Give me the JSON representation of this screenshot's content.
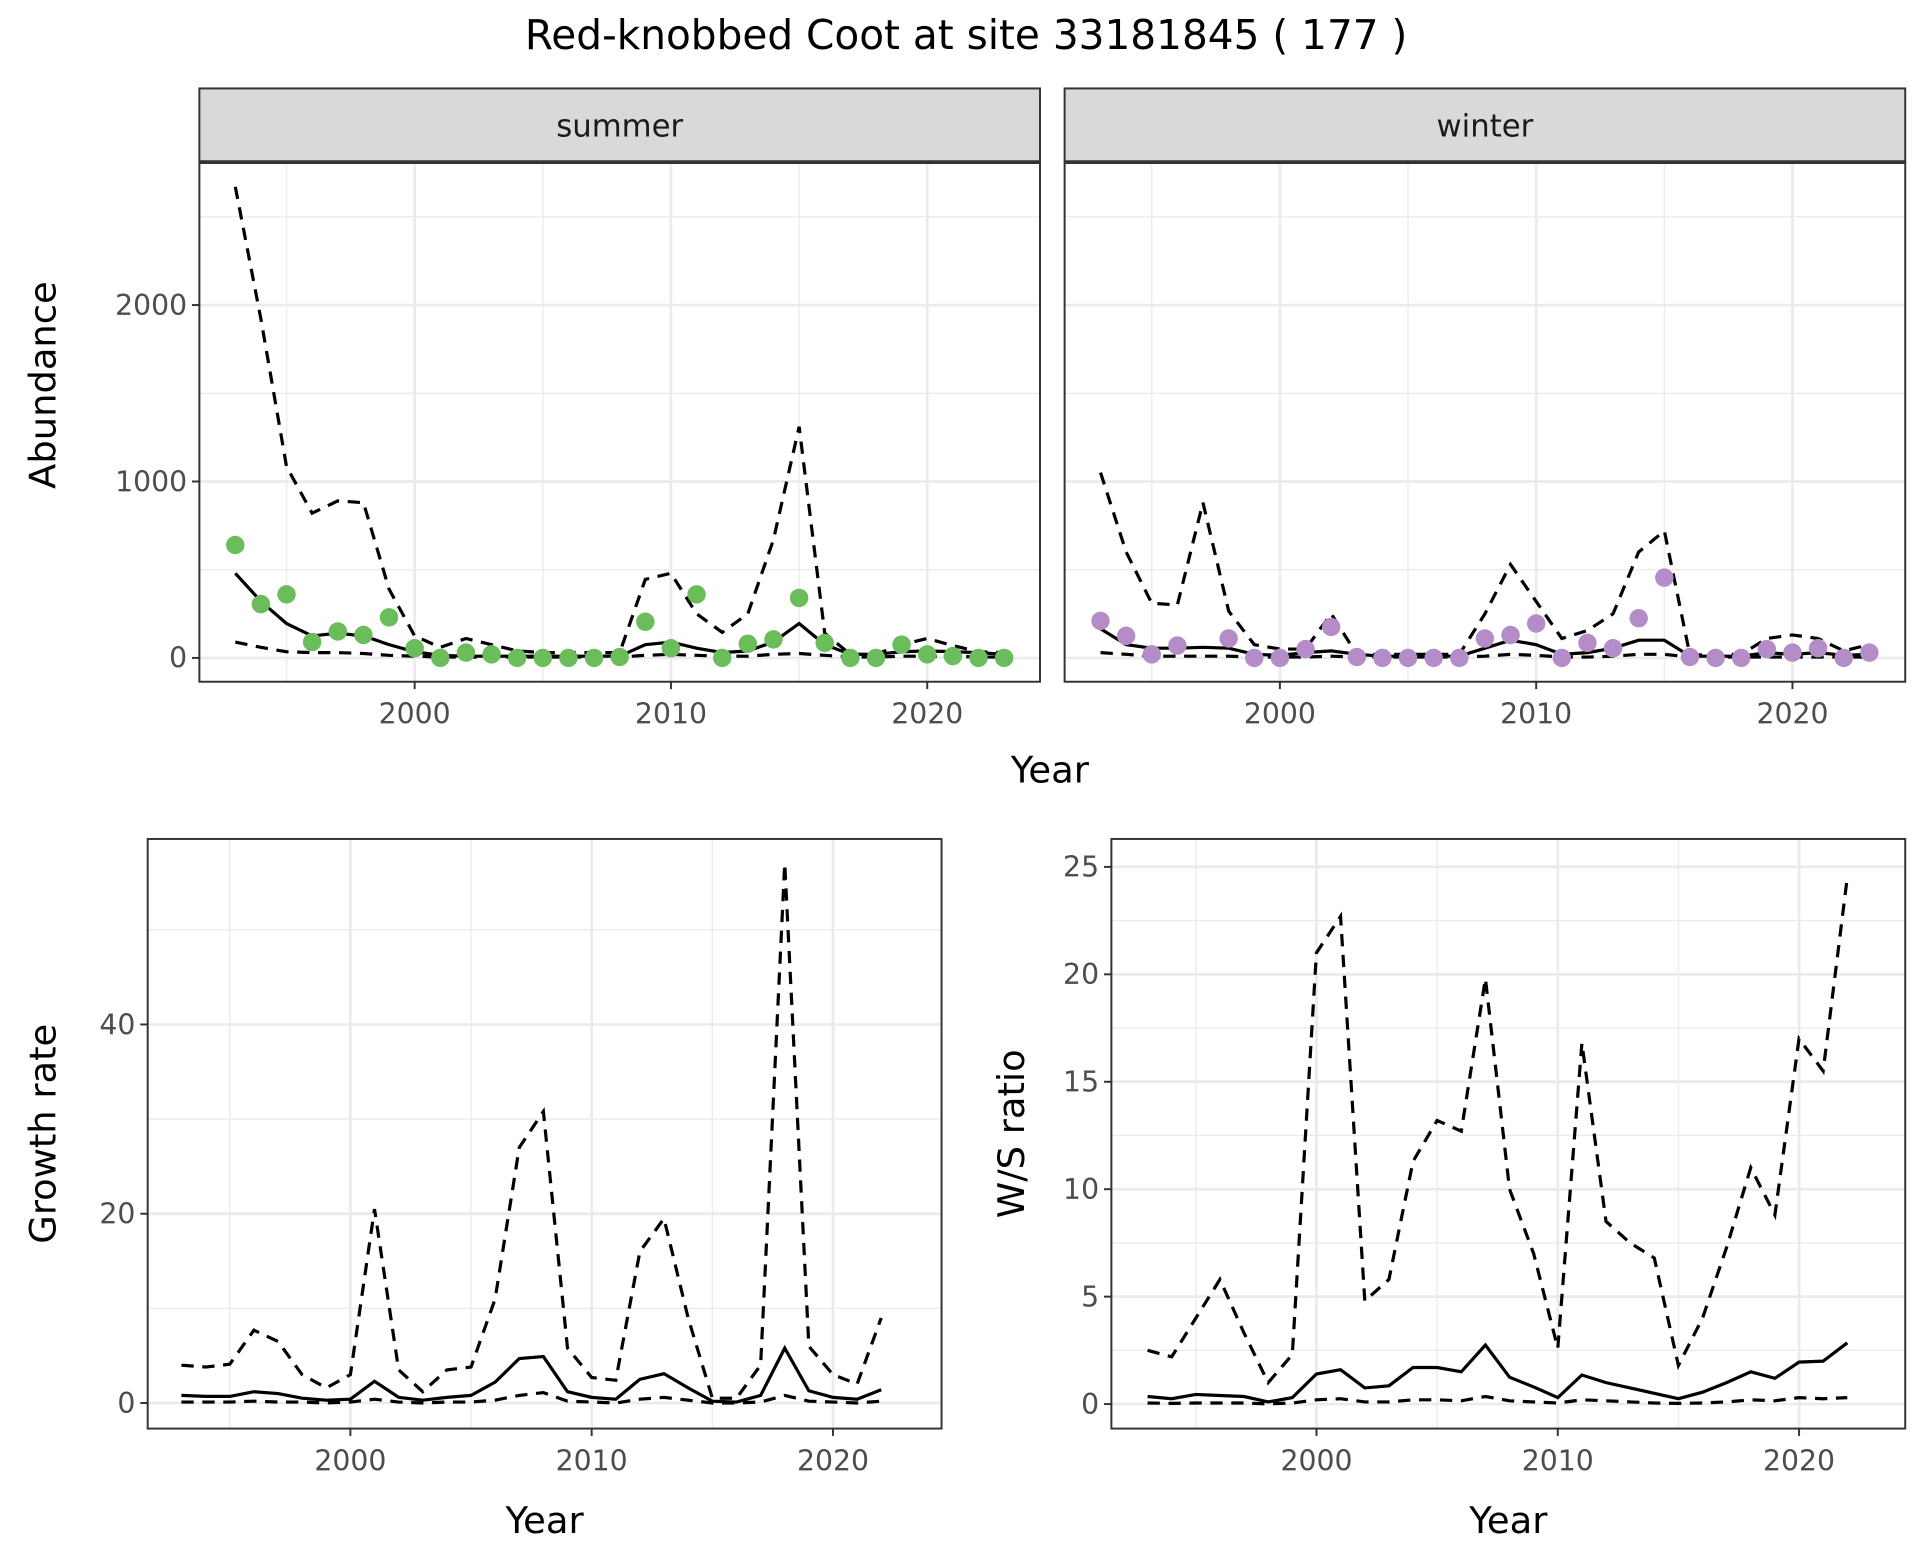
{
  "title": "Red-knobbed Coot at site 33181845 ( 177 )",
  "colors": {
    "summer_points": "#6abd5a",
    "winter_points": "#b48cc8",
    "lines": "#000000",
    "strip": "#d9d9d9",
    "grid": "#ebebeb"
  },
  "chart_data": [
    {
      "type": "line+scatter",
      "facet": "summer",
      "xlabel": "Year",
      "ylabel": "Abundance",
      "xlim": [
        1991.6,
        2024.4
      ],
      "ylim": [
        -135,
        2810
      ],
      "xticks": [
        2000,
        2010,
        2020
      ],
      "yticks": [
        0,
        1000,
        2000
      ],
      "grid": true,
      "x": [
        1993,
        1994,
        1995,
        1996,
        1997,
        1998,
        1999,
        2000,
        2001,
        2002,
        2003,
        2004,
        2005,
        2006,
        2007,
        2008,
        2009,
        2010,
        2011,
        2012,
        2013,
        2014,
        2015,
        2016,
        2017,
        2018,
        2019,
        2020,
        2021,
        2022,
        2023
      ],
      "points": [
        640,
        305,
        360,
        90,
        150,
        130,
        230,
        55,
        0,
        30,
        20,
        0,
        0,
        0,
        0,
        5,
        205,
        55,
        360,
        0,
        80,
        105,
        340,
        85,
        0,
        0,
        75,
        20,
        10,
        0,
        0
      ],
      "mean": [
        480,
        320,
        195,
        125,
        140,
        125,
        75,
        35,
        15,
        10,
        10,
        10,
        10,
        10,
        10,
        10,
        75,
        90,
        55,
        30,
        40,
        90,
        195,
        75,
        20,
        20,
        35,
        40,
        35,
        30,
        20
      ],
      "upper": [
        2670,
        1920,
        1085,
        820,
        890,
        880,
        390,
        125,
        60,
        110,
        75,
        40,
        30,
        30,
        30,
        30,
        445,
        480,
        250,
        145,
        250,
        670,
        1310,
        140,
        20,
        20,
        75,
        110,
        70,
        35,
        30
      ],
      "lower": [
        90,
        60,
        35,
        30,
        30,
        25,
        15,
        10,
        5,
        5,
        5,
        5,
        5,
        5,
        5,
        5,
        15,
        20,
        15,
        10,
        10,
        20,
        25,
        15,
        5,
        5,
        10,
        10,
        10,
        5,
        5
      ]
    },
    {
      "type": "line+scatter",
      "facet": "winter",
      "xlabel": "Year",
      "ylabel": "Abundance",
      "xlim": [
        1991.6,
        2024.4
      ],
      "ylim": [
        -135,
        2810
      ],
      "xticks": [
        2000,
        2010,
        2020
      ],
      "yticks": [
        0,
        1000,
        2000
      ],
      "grid": true,
      "x": [
        1993,
        1994,
        1995,
        1996,
        1997,
        1998,
        1999,
        2000,
        2001,
        2002,
        2003,
        2004,
        2005,
        2006,
        2007,
        2008,
        2009,
        2010,
        2011,
        2012,
        2013,
        2014,
        2015,
        2016,
        2017,
        2018,
        2019,
        2020,
        2021,
        2022,
        2023
      ],
      "points": [
        210,
        125,
        20,
        70,
        null,
        110,
        0,
        0,
        50,
        175,
        5,
        0,
        0,
        0,
        0,
        110,
        130,
        195,
        0,
        85,
        55,
        225,
        455,
        5,
        0,
        0,
        50,
        30,
        55,
        0,
        30
      ],
      "mean": [
        165,
        75,
        55,
        55,
        60,
        55,
        20,
        15,
        30,
        40,
        20,
        10,
        10,
        10,
        10,
        55,
        100,
        75,
        20,
        30,
        55,
        100,
        100,
        10,
        10,
        10,
        30,
        20,
        30,
        15,
        20
      ],
      "upper": [
        1050,
        600,
        310,
        300,
        880,
        265,
        75,
        50,
        50,
        250,
        20,
        20,
        20,
        20,
        20,
        250,
        530,
        320,
        110,
        155,
        250,
        600,
        720,
        15,
        20,
        20,
        110,
        130,
        110,
        40,
        75
      ],
      "lower": [
        30,
        20,
        10,
        10,
        10,
        10,
        5,
        5,
        5,
        10,
        5,
        5,
        5,
        5,
        5,
        10,
        20,
        15,
        5,
        5,
        10,
        20,
        20,
        5,
        5,
        5,
        5,
        5,
        5,
        5,
        5
      ]
    },
    {
      "type": "line",
      "xlabel": "Year",
      "ylabel": "Growth rate",
      "xlim": [
        1991.6,
        2024.5
      ],
      "ylim": [
        -2.7,
        59.6
      ],
      "xticks": [
        2000,
        2010,
        2020
      ],
      "yticks": [
        0,
        20,
        40
      ],
      "grid": true,
      "x": [
        1993,
        1994,
        1995,
        1996,
        1997,
        1998,
        1999,
        2000,
        2001,
        2002,
        2003,
        2004,
        2005,
        2006,
        2007,
        2008,
        2009,
        2010,
        2011,
        2012,
        2013,
        2014,
        2015,
        2016,
        2017,
        2018,
        2019,
        2020,
        2021,
        2022
      ],
      "mean": [
        0.8,
        0.7,
        0.7,
        1.2,
        1.0,
        0.5,
        0.3,
        0.4,
        2.3,
        0.6,
        0.3,
        0.6,
        0.8,
        2.2,
        4.7,
        4.9,
        1.2,
        0.6,
        0.4,
        2.5,
        3.1,
        1.6,
        0.2,
        0.1,
        0.8,
        5.8,
        1.3,
        0.6,
        0.4,
        1.4
      ],
      "upper": [
        4.0,
        3.8,
        4.1,
        7.7,
        6.5,
        3.0,
        1.6,
        3.0,
        20.5,
        3.5,
        1.2,
        3.5,
        3.8,
        11,
        27,
        30.8,
        5.8,
        2.7,
        2.4,
        16,
        19.5,
        9,
        0.5,
        0.5,
        4,
        57,
        6,
        3,
        2,
        9
      ],
      "lower": [
        0.1,
        0.1,
        0.1,
        0.2,
        0.1,
        0.1,
        0,
        0.1,
        0.4,
        0.1,
        0,
        0.1,
        0.1,
        0.3,
        0.8,
        1.1,
        0.2,
        0.1,
        0,
        0.4,
        0.6,
        0.3,
        0,
        0,
        0.1,
        0.8,
        0.2,
        0.1,
        0,
        0.2
      ]
    },
    {
      "type": "line",
      "xlabel": "Year",
      "ylabel": "W/S ratio",
      "xlim": [
        1991.5,
        2024.4
      ],
      "ylim": [
        -1.14,
        26.3
      ],
      "xticks": [
        2000,
        2010,
        2020
      ],
      "yticks": [
        0,
        5,
        10,
        15,
        20,
        25
      ],
      "grid": true,
      "x": [
        1993,
        1994,
        1995,
        1996,
        1997,
        1998,
        1999,
        2000,
        2001,
        2002,
        2003,
        2004,
        2005,
        2006,
        2007,
        2008,
        2009,
        2010,
        2011,
        2012,
        2013,
        2014,
        2015,
        2016,
        2017,
        2018,
        2019,
        2020,
        2021,
        2022
      ],
      "mean": [
        0.35,
        0.25,
        0.45,
        0.4,
        0.35,
        0.1,
        0.3,
        1.4,
        1.6,
        0.75,
        0.85,
        1.7,
        1.7,
        1.5,
        2.75,
        1.25,
        0.8,
        0.3,
        1.35,
        1.0,
        0.75,
        0.5,
        0.25,
        0.55,
        1.0,
        1.5,
        1.2,
        1.95,
        2.0,
        2.85
      ],
      "upper": [
        2.5,
        2.2,
        4.0,
        5.8,
        3.3,
        1.0,
        2.3,
        21.0,
        22.7,
        4.8,
        5.8,
        11.3,
        13.2,
        12.7,
        19.8,
        10,
        7,
        2.6,
        16.8,
        8.5,
        7.5,
        6.8,
        1.8,
        4,
        7.3,
        11,
        8.8,
        17,
        15.5,
        24.5
      ],
      "lower": [
        0.05,
        0.03,
        0.05,
        0.05,
        0.05,
        0.01,
        0.05,
        0.2,
        0.25,
        0.1,
        0.1,
        0.2,
        0.2,
        0.15,
        0.35,
        0.15,
        0.1,
        0.05,
        0.2,
        0.15,
        0.1,
        0.05,
        0.03,
        0.05,
        0.1,
        0.2,
        0.15,
        0.3,
        0.25,
        0.3
      ]
    }
  ]
}
